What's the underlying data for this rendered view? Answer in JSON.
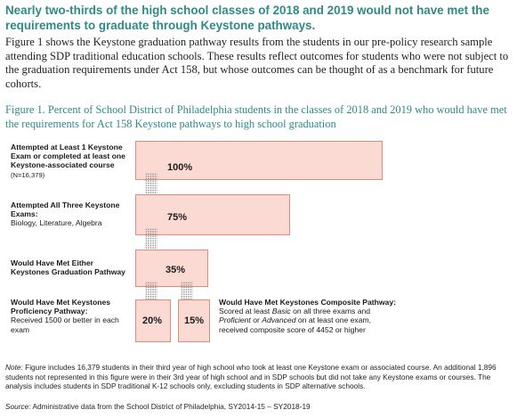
{
  "heading": "Nearly two-thirds of the high school classes of 2018 and 2019 would not have met the requirements to graduate through Keystone pathways.",
  "intro": "Figure 1 shows the Keystone graduation pathway results from the students in our pre-policy research sample attending SDP traditional education schools. These results reflect outcomes for students who were not subject to the graduation requirements under Act 158, but whose outcomes can be thought of as a benchmark for future cohorts.",
  "figure_caption": "Figure 1. Percent of School District of Philadelphia students in the classes of 2018 and 2019 who would have met the requirements for Act 158 Keystone pathways to high school graduation",
  "figure": {
    "stages": [
      {
        "label": "Attempted at Least 1 Keystone Exam or completed at least one Keystone-associated course",
        "n_note": "(N=16,379)",
        "value": "100%"
      },
      {
        "label": "Attempted All Three Keystone Exams:",
        "sub": "Biology, Literature, Algebra",
        "value": "75%"
      },
      {
        "label": "Would Have Met Either Keystones Graduation Pathway",
        "value": "35%"
      }
    ],
    "proficiency": {
      "label": "Would Have Met Keystones Proficiency Pathway:",
      "sub": "Received 1500 or better in each exam",
      "value": "20%"
    },
    "composite": {
      "label": "Would Have Met Keystones Composite Pathway:",
      "sub_1": "Scored at least ",
      "sub_basic": "Basic",
      "sub_2": " on all three exams and ",
      "sub_proficient": "Proficient",
      "sub_3": " or ",
      "sub_advanced": "Advanced",
      "sub_4": " on at least one exam, received composite score of 4452 or higher",
      "value": "15%"
    }
  },
  "note_label": "Note:",
  "note_text": " Figure includes 16,379 students in their third year of high school who took at least one Keystone exam or associated course. An additional 1,896 students not represented in this figure were in their 3rd year of high school and in SDP schools but did not take any Keystone exams or courses. The analysis includes students in SDP traditional K-12 schools only, excluding students in SDP alternative schools.",
  "source_label": "Source:",
  "source_text": " Administrative data from the School District of Philadelphia, SY2014-15 – SY2018-19",
  "colors": {
    "heading": "#2f8a86",
    "bar_fill": "#fbdad3",
    "bar_border": "#d98e7f",
    "chevron_dots": "#9a9a9a"
  }
}
